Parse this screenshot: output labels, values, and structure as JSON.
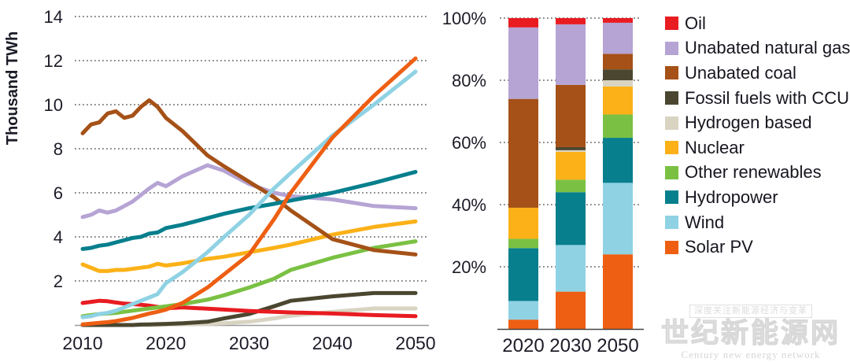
{
  "legend": {
    "items": [
      {
        "label": "Oil",
        "color": "#e81c21"
      },
      {
        "label": "Unabated natural gas",
        "color": "#b5a4d4"
      },
      {
        "label": "Unabated coal",
        "color": "#a55117"
      },
      {
        "label": "Fossil fuels with CCUS",
        "color": "#4a4630"
      },
      {
        "label": "Hydrogen based",
        "color": "#d9d4c2"
      },
      {
        "label": "Nuclear",
        "color": "#fbb117"
      },
      {
        "label": "Other renewables",
        "color": "#7ac143"
      },
      {
        "label": "Hydropower",
        "color": "#077f8d"
      },
      {
        "label": "Wind",
        "color": "#8fd2e4"
      },
      {
        "label": "Solar PV",
        "color": "#ee5f13"
      }
    ]
  },
  "chart_data": [
    {
      "type": "line",
      "title": "",
      "ylabel": "Thousand TWh",
      "xlabel": "",
      "ylim": [
        0,
        14
      ],
      "yticks": [
        2,
        4,
        6,
        8,
        10,
        12,
        14
      ],
      "xticks": [
        2010,
        2020,
        2030,
        2040,
        2050
      ],
      "grid": "dotted-horizontal",
      "x": [
        2010,
        2011,
        2012,
        2013,
        2014,
        2015,
        2016,
        2017,
        2018,
        2019,
        2020,
        2022,
        2025,
        2027,
        2030,
        2033,
        2035,
        2040,
        2045,
        2050
      ],
      "series": [
        {
          "name": "Oil",
          "values": [
            1.0,
            1.05,
            1.1,
            1.08,
            1.02,
            0.97,
            0.95,
            0.92,
            0.88,
            0.82,
            0.76,
            0.8,
            0.74,
            0.7,
            0.64,
            0.6,
            0.57,
            0.52,
            0.45,
            0.4
          ]
        },
        {
          "name": "Unabated natural gas",
          "values": [
            4.9,
            5.0,
            5.2,
            5.1,
            5.2,
            5.4,
            5.6,
            5.9,
            6.2,
            6.45,
            6.3,
            6.75,
            7.25,
            7.0,
            6.4,
            6.0,
            5.85,
            5.7,
            5.4,
            5.3
          ]
        },
        {
          "name": "Unabated coal",
          "values": [
            8.7,
            9.1,
            9.2,
            9.6,
            9.7,
            9.4,
            9.5,
            9.9,
            10.2,
            9.9,
            9.4,
            8.8,
            7.7,
            7.2,
            6.5,
            5.8,
            5.2,
            3.9,
            3.4,
            3.2
          ]
        },
        {
          "name": "Fossil fuels with CCUS",
          "values": [
            0,
            0,
            0,
            0,
            0,
            0,
            0,
            0.02,
            0.03,
            0.04,
            0.05,
            0.08,
            0.15,
            0.3,
            0.5,
            0.85,
            1.1,
            1.3,
            1.45,
            1.45
          ]
        },
        {
          "name": "Hydrogen based",
          "values": [
            0,
            0,
            0,
            0,
            0,
            0,
            0,
            0,
            0,
            0,
            0.02,
            0.03,
            0.05,
            0.08,
            0.15,
            0.3,
            0.42,
            0.6,
            0.75,
            0.75
          ]
        },
        {
          "name": "Nuclear",
          "values": [
            2.75,
            2.6,
            2.45,
            2.45,
            2.5,
            2.5,
            2.55,
            2.6,
            2.65,
            2.78,
            2.7,
            2.8,
            3.0,
            3.1,
            3.3,
            3.5,
            3.65,
            4.1,
            4.45,
            4.7
          ]
        },
        {
          "name": "Other renewables",
          "values": [
            0.4,
            0.45,
            0.5,
            0.52,
            0.55,
            0.6,
            0.65,
            0.7,
            0.75,
            0.8,
            0.85,
            0.95,
            1.15,
            1.35,
            1.7,
            2.1,
            2.5,
            3.05,
            3.5,
            3.8
          ]
        },
        {
          "name": "Hydropower",
          "values": [
            3.45,
            3.5,
            3.6,
            3.65,
            3.75,
            3.85,
            3.95,
            4.0,
            4.15,
            4.2,
            4.4,
            4.55,
            4.85,
            5.05,
            5.3,
            5.5,
            5.65,
            6.0,
            6.45,
            6.95
          ]
        },
        {
          "name": "Wind",
          "values": [
            0.35,
            0.4,
            0.5,
            0.55,
            0.65,
            0.8,
            0.95,
            1.1,
            1.25,
            1.4,
            1.9,
            2.4,
            3.3,
            4.0,
            5.0,
            6.2,
            6.9,
            8.6,
            10.0,
            11.5
          ]
        },
        {
          "name": "Solar PV",
          "values": [
            0.03,
            0.06,
            0.1,
            0.13,
            0.18,
            0.25,
            0.32,
            0.42,
            0.52,
            0.6,
            0.7,
            1.0,
            1.7,
            2.3,
            3.2,
            4.8,
            6.0,
            8.5,
            10.4,
            12.1
          ]
        }
      ],
      "draw_order": [
        "Hydrogen based",
        "Fossil fuels with CCUS",
        "Oil",
        "Other renewables",
        "Nuclear",
        "Unabated natural gas",
        "Unabated coal",
        "Hydropower",
        "Wind",
        "Solar PV"
      ]
    },
    {
      "type": "stacked-bar-100",
      "title": "",
      "categories": [
        "2020",
        "2030",
        "2050"
      ],
      "ytick_labels": [
        "20%",
        "40%",
        "60%",
        "80%",
        "100%"
      ],
      "yticks_percent": [
        20,
        40,
        60,
        80,
        100
      ],
      "grid": "dotted-horizontal",
      "stack_order_bottom_up": [
        "Solar PV",
        "Wind",
        "Hydropower",
        "Other renewables",
        "Nuclear",
        "Hydrogen based",
        "Fossil fuels with CCUS",
        "Unabated coal",
        "Unabated natural gas",
        "Oil"
      ],
      "series": [
        {
          "name": "Oil",
          "values": [
            3,
            2,
            1.5
          ]
        },
        {
          "name": "Unabated natural gas",
          "values": [
            23,
            19.5,
            10
          ]
        },
        {
          "name": "Unabated coal",
          "values": [
            35,
            20,
            5
          ]
        },
        {
          "name": "Fossil fuels with CCUS",
          "values": [
            0,
            1,
            3.5
          ]
        },
        {
          "name": "Hydrogen based",
          "values": [
            0,
            0.5,
            2
          ]
        },
        {
          "name": "Nuclear",
          "values": [
            10,
            9,
            9
          ]
        },
        {
          "name": "Other renewables",
          "values": [
            3,
            4,
            7.5
          ]
        },
        {
          "name": "Hydropower",
          "values": [
            17,
            17,
            14.5
          ]
        },
        {
          "name": "Wind",
          "values": [
            6,
            15,
            23
          ]
        },
        {
          "name": "Solar PV",
          "values": [
            3,
            12,
            24
          ]
        }
      ]
    }
  ],
  "watermark": {
    "tagline": "深度关注新能源经济与变革",
    "title": "世纪新能源网",
    "subtitle": "Century new energy network"
  }
}
